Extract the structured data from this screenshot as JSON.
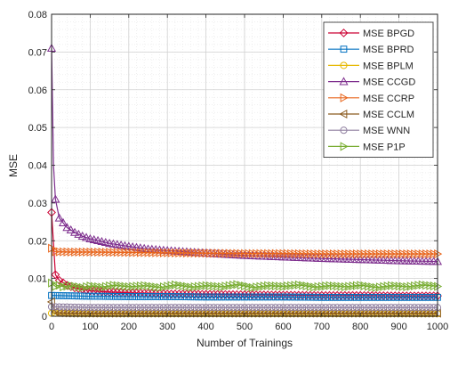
{
  "chart_data": {
    "type": "line",
    "xlabel": "Number of Trainings",
    "ylabel": "MSE",
    "xlim": [
      0,
      1000
    ],
    "ylim": [
      0,
      0.08
    ],
    "x_ticks": [
      "0",
      "100",
      "200",
      "300",
      "400",
      "500",
      "600",
      "700",
      "800",
      "900",
      "1000"
    ],
    "y_ticks": [
      "0",
      "0.01",
      "0.02",
      "0.03",
      "0.04",
      "0.05",
      "0.06",
      "0.07",
      "0.08"
    ],
    "grid": true,
    "minor_grid": true,
    "legend_position": "top-right",
    "series": [
      {
        "name": "MSE BPGD",
        "color": "#cc0033",
        "marker": "diamond",
        "x": [
          0,
          10,
          20,
          40,
          60,
          100,
          150,
          200,
          300,
          400,
          500,
          600,
          700,
          800,
          900,
          1000
        ],
        "y": [
          0.0275,
          0.011,
          0.0095,
          0.0082,
          0.0075,
          0.0068,
          0.0064,
          0.0062,
          0.0059,
          0.0058,
          0.0057,
          0.0056,
          0.0055,
          0.0055,
          0.0054,
          0.0054
        ]
      },
      {
        "name": "MSE BPRD",
        "color": "#0070c0",
        "marker": "square",
        "x": [
          0,
          100,
          200,
          300,
          400,
          500,
          600,
          700,
          800,
          900,
          1000
        ],
        "y": [
          0.0055,
          0.0053,
          0.0052,
          0.0052,
          0.0051,
          0.0051,
          0.0051,
          0.005,
          0.005,
          0.005,
          0.005
        ]
      },
      {
        "name": "MSE BPLM",
        "color": "#e6b800",
        "marker": "circle",
        "x": [
          0,
          100,
          200,
          300,
          400,
          500,
          600,
          700,
          800,
          900,
          1000
        ],
        "y": [
          0.0008,
          0.0007,
          0.0007,
          0.0007,
          0.0007,
          0.0007,
          0.0007,
          0.0007,
          0.0007,
          0.0007,
          0.0007
        ]
      },
      {
        "name": "MSE CCGD",
        "color": "#7e2f8e",
        "marker": "triangle-up",
        "x": [
          0,
          5,
          10,
          20,
          40,
          60,
          80,
          100,
          150,
          200,
          250,
          300,
          400,
          500,
          600,
          700,
          800,
          900,
          1000
        ],
        "y": [
          0.071,
          0.04,
          0.031,
          0.026,
          0.0235,
          0.0222,
          0.0212,
          0.0205,
          0.0193,
          0.0185,
          0.0178,
          0.0174,
          0.0167,
          0.0161,
          0.0157,
          0.0153,
          0.015,
          0.0147,
          0.0145
        ]
      },
      {
        "name": "MSE CCRP",
        "color": "#e8651c",
        "marker": "triangle-right",
        "x": [
          0,
          5,
          10,
          50,
          100,
          200,
          300,
          400,
          500,
          600,
          700,
          800,
          900,
          1000
        ],
        "y": [
          0.018,
          0.0172,
          0.0171,
          0.017,
          0.017,
          0.0169,
          0.0168,
          0.0167,
          0.0166,
          0.0166,
          0.0165,
          0.0165,
          0.0165,
          0.0165
        ]
      },
      {
        "name": "MSE CCLM",
        "color": "#8b5a1e",
        "marker": "triangle-left",
        "x": [
          0,
          10,
          20,
          50,
          100,
          200,
          300,
          400,
          500,
          600,
          700,
          800,
          900,
          1000
        ],
        "y": [
          0.0038,
          0.0012,
          0.0009,
          0.0008,
          0.0008,
          0.0008,
          0.0008,
          0.0008,
          0.0008,
          0.0008,
          0.0008,
          0.0008,
          0.0008,
          0.0008
        ]
      },
      {
        "name": "MSE WNN",
        "color": "#8f7f9f",
        "marker": "circle",
        "x": [
          0,
          100,
          200,
          300,
          400,
          500,
          600,
          700,
          800,
          900,
          1000
        ],
        "y": [
          0.0025,
          0.0023,
          0.0023,
          0.0023,
          0.0023,
          0.0023,
          0.0023,
          0.0023,
          0.0023,
          0.0023,
          0.0023
        ]
      },
      {
        "name": "MSE P1P",
        "color": "#77ac30",
        "marker": "triangle-right",
        "x": [
          0,
          5,
          10,
          20,
          30,
          50,
          80,
          100,
          130,
          160,
          200,
          240,
          280,
          320,
          360,
          400,
          440,
          480,
          520,
          560,
          600,
          640,
          680,
          720,
          760,
          800,
          840,
          880,
          920,
          960,
          1000
        ],
        "y": [
          0.0088,
          0.0083,
          0.0079,
          0.0082,
          0.0078,
          0.0081,
          0.0076,
          0.008,
          0.0077,
          0.0082,
          0.0078,
          0.0081,
          0.0076,
          0.0083,
          0.0077,
          0.0081,
          0.0078,
          0.0084,
          0.0076,
          0.0081,
          0.0079,
          0.0083,
          0.0077,
          0.0081,
          0.0078,
          0.0082,
          0.0076,
          0.0081,
          0.0078,
          0.0083,
          0.0079
        ]
      }
    ]
  }
}
